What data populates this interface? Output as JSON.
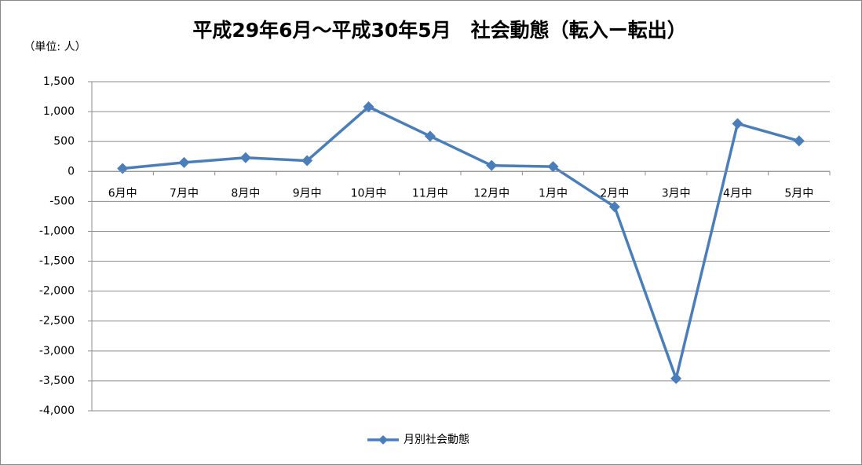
{
  "chart_data": {
    "type": "line",
    "title": "平成29年6月～平成30年5月　社会動態（転入ー転出）",
    "unit_label": "（単位: 人）",
    "categories": [
      "6月中",
      "7月中",
      "8月中",
      "9月中",
      "10月中",
      "11月中",
      "12月中",
      "1月中",
      "2月中",
      "3月中",
      "4月中",
      "5月中"
    ],
    "series": [
      {
        "name": "月別社会動態",
        "color": "#4a7ebb",
        "values": [
          50,
          150,
          230,
          180,
          1080,
          590,
          100,
          80,
          -590,
          -3460,
          800,
          510
        ]
      }
    ],
    "ylim": [
      -4000,
      1500
    ],
    "yticks": [
      {
        "value": -4000,
        "label": "-4,000"
      },
      {
        "value": -3500,
        "label": "-3,500"
      },
      {
        "value": -3000,
        "label": "-3,000"
      },
      {
        "value": -2500,
        "label": "-2,500"
      },
      {
        "value": -2000,
        "label": "-2,000"
      },
      {
        "value": -1500,
        "label": "-1,500"
      },
      {
        "value": -1000,
        "label": "-1,000"
      },
      -500,
      0,
      500,
      {
        "value": 1000,
        "label": "1,000"
      },
      {
        "value": 1500,
        "label": "1,500"
      }
    ],
    "grid": true,
    "legend": "bottom"
  }
}
